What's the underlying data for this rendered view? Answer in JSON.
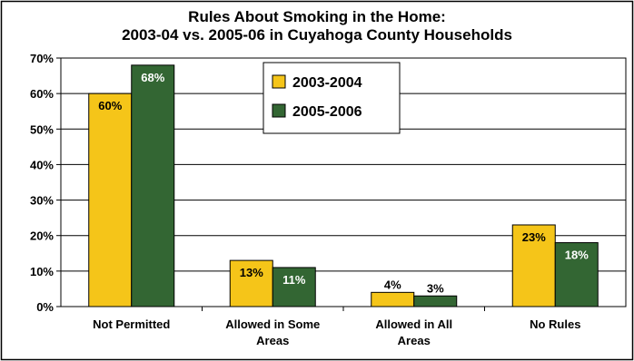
{
  "chart_data": {
    "type": "bar",
    "title": [
      "Rules About Smoking in the Home:",
      "2003-04 vs. 2005-06 in Cuyahoga County Households"
    ],
    "categories": [
      [
        "Not Permitted"
      ],
      [
        "Allowed in Some",
        "Areas"
      ],
      [
        "Allowed in All",
        "Areas"
      ],
      [
        "No Rules"
      ]
    ],
    "series": [
      {
        "name": "2003-2004",
        "color": "#F5C519",
        "label_color": "#000000",
        "values": [
          60,
          13,
          4,
          23
        ],
        "labels": [
          "60%",
          "13%",
          "4%",
          "23%"
        ]
      },
      {
        "name": "2005-2006",
        "color": "#336633",
        "label_color": "#ffffff",
        "values": [
          68,
          11,
          3,
          18
        ],
        "labels": [
          "68%",
          "11%",
          "3%",
          "18%"
        ]
      }
    ],
    "ylim": [
      0,
      70
    ],
    "yticks": [
      0,
      10,
      20,
      30,
      40,
      50,
      60,
      70
    ],
    "ytick_labels": [
      "0%",
      "10%",
      "20%",
      "30%",
      "40%",
      "50%",
      "60%",
      "70%"
    ],
    "xlabel": "",
    "ylabel": "",
    "grid": true,
    "legend": "top-center"
  }
}
